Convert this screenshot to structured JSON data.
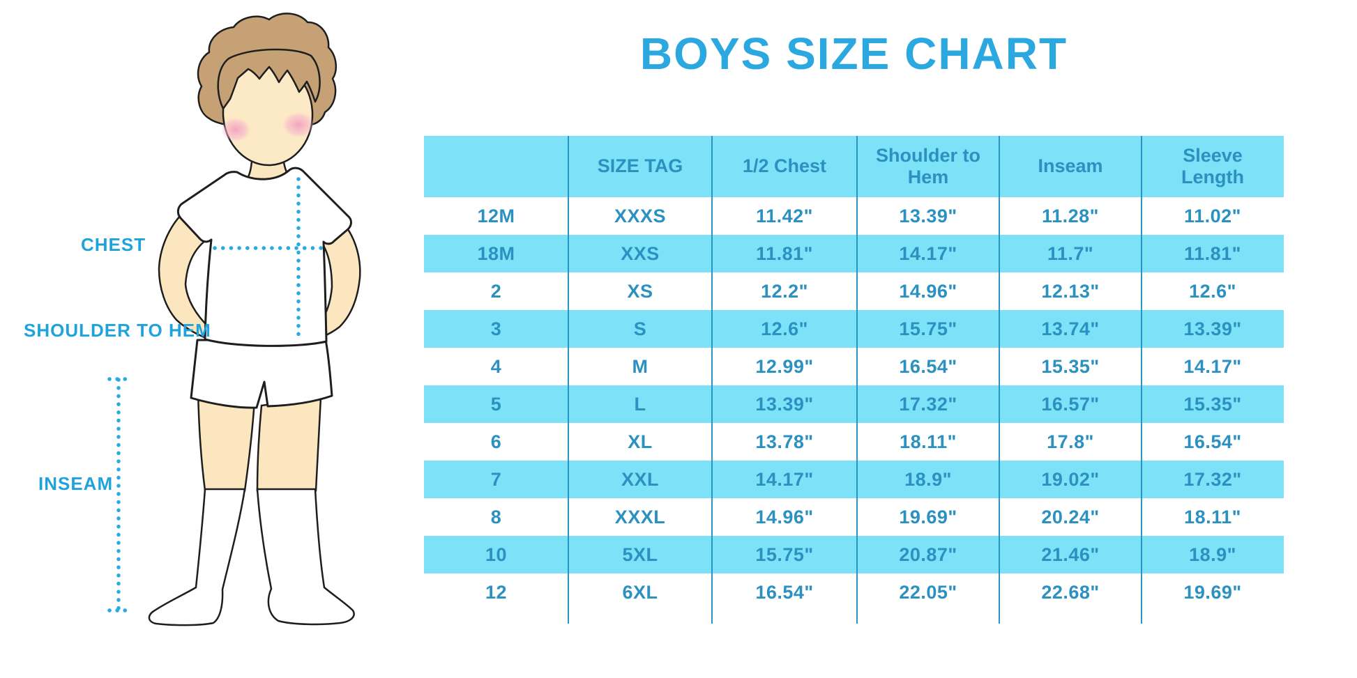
{
  "title": "BOYS SIZE CHART",
  "diagram": {
    "labels": {
      "chest": "CHEST",
      "shoulder_to_hem": "SHOULDER TO HEM",
      "inseam": "INSEAM"
    }
  },
  "table": {
    "headers": [
      "",
      "SIZE TAG",
      "1/2 Chest",
      "Shoulder to Hem",
      "Inseam",
      "Sleeve Length"
    ],
    "rows": [
      {
        "size": "12M",
        "tag": "XXXS",
        "chest": "11.42\"",
        "shoulder_to_hem": "13.39\"",
        "inseam": "11.28\"",
        "sleeve": "11.02\""
      },
      {
        "size": "18M",
        "tag": "XXS",
        "chest": "11.81\"",
        "shoulder_to_hem": "14.17\"",
        "inseam": "11.7\"",
        "sleeve": "11.81\""
      },
      {
        "size": "2",
        "tag": "XS",
        "chest": "12.2\"",
        "shoulder_to_hem": "14.96\"",
        "inseam": "12.13\"",
        "sleeve": "12.6\""
      },
      {
        "size": "3",
        "tag": "S",
        "chest": "12.6\"",
        "shoulder_to_hem": "15.75\"",
        "inseam": "13.74\"",
        "sleeve": "13.39\""
      },
      {
        "size": "4",
        "tag": "M",
        "chest": "12.99\"",
        "shoulder_to_hem": "16.54\"",
        "inseam": "15.35\"",
        "sleeve": "14.17\""
      },
      {
        "size": "5",
        "tag": "L",
        "chest": "13.39\"",
        "shoulder_to_hem": "17.32\"",
        "inseam": "16.57\"",
        "sleeve": "15.35\""
      },
      {
        "size": "6",
        "tag": "XL",
        "chest": "13.78\"",
        "shoulder_to_hem": "18.11\"",
        "inseam": "17.8\"",
        "sleeve": "16.54\""
      },
      {
        "size": "7",
        "tag": "XXL",
        "chest": "14.17\"",
        "shoulder_to_hem": "18.9\"",
        "inseam": "19.02\"",
        "sleeve": "17.32\""
      },
      {
        "size": "8",
        "tag": "XXXL",
        "chest": "14.96\"",
        "shoulder_to_hem": "19.69\"",
        "inseam": "20.24\"",
        "sleeve": "18.11\""
      },
      {
        "size": "10",
        "tag": "5XL",
        "chest": "15.75\"",
        "shoulder_to_hem": "20.87\"",
        "inseam": "21.46\"",
        "sleeve": "18.9\""
      },
      {
        "size": "12",
        "tag": "6XL",
        "chest": "16.54\"",
        "shoulder_to_hem": "22.05\"",
        "inseam": "22.68\"",
        "sleeve": "19.69\""
      }
    ]
  },
  "colors": {
    "title_blue": "#2BA8E0",
    "label_blue": "#1FA3DC",
    "table_text_blue": "#2B91C0",
    "band_cyan": "#7DE1F8",
    "line_blue": "#2695C5",
    "dotted_line_cyan": "#29ABE2",
    "skin": "#FBE6C0",
    "hair_brown": "#C7A176",
    "blush_pink": "#F6A9C4"
  }
}
